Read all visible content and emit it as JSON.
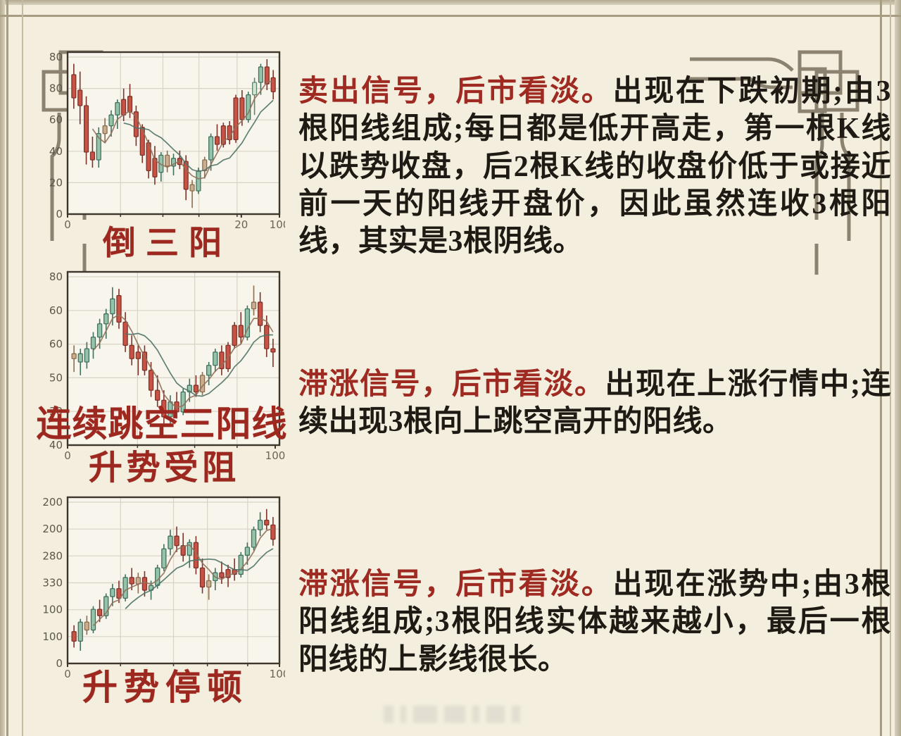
{
  "page": {
    "background": "#f3eedd",
    "frame_color": "#a59c81",
    "ornament_color": "#8b8270",
    "heading_red": "#9e2a22",
    "body_black": "#201a14"
  },
  "captions": {
    "chart1": "倒三阳",
    "chart2_main": "连续跳空三阳线",
    "chart2_sub": "升势受阻",
    "chart3": "升势停顿"
  },
  "texts": [
    {
      "lead": "卖出信号，后市看淡。",
      "body": "出现在下跌初期;由3根阳线组成;每日都是低开高走，第一根K线 以跌势收盘，后2根K线的收盘价低于或接近前一天的阳线开盘价，因此虽然连收3根阳线，其实是3根阴线。"
    },
    {
      "lead": "滞涨信号，后市看淡。",
      "body": "出现在上涨行情中;连续出现3根向上跳空高开的阳线。"
    },
    {
      "lead": "滞涨信号，后市看淡。",
      "body": "出现在涨势中;由3根阳线组成;3根阳线实体越来越小，最后一根阳线的上影线很长。"
    }
  ],
  "candle_palette": {
    "r": [
      "#c85244",
      "#7e332a"
    ],
    "g": [
      "#94c3a9",
      "#42705e"
    ],
    "lg": [
      "#d3e4d1",
      "#5f8570"
    ],
    "t": [
      "#c8ae8f",
      "#8a6e4f"
    ]
  },
  "ma_colors": [
    "#91705a",
    "#4f7367"
  ],
  "chart_data": [
    {
      "type": "candlestick",
      "title": "倒三阳",
      "ylim": [
        0,
        100
      ],
      "grid": true,
      "y_ticks": [
        "80",
        "80",
        "60",
        "40",
        "20",
        "0"
      ],
      "x_ticks": [
        {
          "label": "0",
          "pos": 0
        },
        {
          "label": "20",
          "pos": 0.82
        },
        {
          "label": "100",
          "pos": 1
        }
      ],
      "v_grid": [
        0.25,
        0.45,
        0.62,
        0.8
      ],
      "ma_windows": [
        4,
        9
      ],
      "candles": [
        [
          90,
          97,
          68,
          75,
          "r"
        ],
        [
          80,
          92,
          58,
          70,
          "r"
        ],
        [
          70,
          76,
          32,
          40,
          "r"
        ],
        [
          40,
          50,
          30,
          35,
          "r"
        ],
        [
          35,
          56,
          30,
          52,
          "g"
        ],
        [
          52,
          62,
          46,
          57,
          "t"
        ],
        [
          57,
          67,
          50,
          64,
          "g"
        ],
        [
          64,
          74,
          55,
          72,
          "g"
        ],
        [
          74,
          81,
          60,
          64,
          "r"
        ],
        [
          76,
          84,
          62,
          66,
          "r"
        ],
        [
          66,
          70,
          44,
          50,
          "r"
        ],
        [
          56,
          58,
          33,
          38,
          "r"
        ],
        [
          46,
          48,
          23,
          28,
          "r"
        ],
        [
          36,
          44,
          19,
          24,
          "r"
        ],
        [
          27,
          40,
          21,
          38,
          "g"
        ],
        [
          38,
          41,
          27,
          31,
          "t"
        ],
        [
          31,
          39,
          25,
          36,
          "g"
        ],
        [
          36,
          41,
          29,
          32,
          "r"
        ],
        [
          34,
          38,
          9,
          16,
          "r"
        ],
        [
          19,
          22,
          4,
          15,
          "t"
        ],
        [
          15,
          30,
          13,
          28,
          "g"
        ],
        [
          28,
          37,
          23,
          35,
          "t"
        ],
        [
          35,
          52,
          28,
          50,
          "g"
        ],
        [
          50,
          58,
          41,
          45,
          "r"
        ],
        [
          45,
          59,
          43,
          57,
          "r"
        ],
        [
          57,
          60,
          45,
          48,
          "r"
        ],
        [
          48,
          77,
          46,
          75,
          "r"
        ],
        [
          75,
          80,
          57,
          61,
          "r"
        ],
        [
          61,
          79,
          59,
          77,
          "g"
        ],
        [
          77,
          88,
          64,
          85,
          "lg"
        ],
        [
          85,
          97,
          77,
          95,
          "g"
        ],
        [
          95,
          100,
          80,
          84,
          "r"
        ],
        [
          88,
          93,
          74,
          79,
          "r"
        ]
      ]
    },
    {
      "type": "candlestick",
      "title": "连续跳空三阳线 / 升势受阻",
      "ylim": [
        0,
        100
      ],
      "grid": true,
      "y_ticks": [
        "80",
        "60",
        "60",
        "50",
        "30",
        "40"
      ],
      "x_ticks": [
        {
          "label": "0",
          "pos": 0
        },
        {
          "label": "100",
          "pos": 0.98
        }
      ],
      "v_grid": [
        0.33,
        0.6,
        0.8
      ],
      "ma_windows": [
        4,
        9
      ],
      "candles": [
        [
          52,
          60,
          44,
          55,
          "t"
        ],
        [
          55,
          58,
          42,
          50,
          "g"
        ],
        [
          50,
          62,
          46,
          58,
          "g"
        ],
        [
          58,
          68,
          52,
          65,
          "g"
        ],
        [
          65,
          76,
          58,
          73,
          "g"
        ],
        [
          73,
          82,
          64,
          79,
          "g"
        ],
        [
          79,
          95,
          72,
          88,
          "g"
        ],
        [
          90,
          94,
          70,
          74,
          "r"
        ],
        [
          74,
          80,
          56,
          60,
          "r"
        ],
        [
          60,
          66,
          48,
          52,
          "r"
        ],
        [
          52,
          60,
          42,
          56,
          "r"
        ],
        [
          56,
          60,
          42,
          45,
          "r"
        ],
        [
          45,
          50,
          29,
          33,
          "r"
        ],
        [
          33,
          42,
          23,
          27,
          "r"
        ],
        [
          27,
          33,
          13,
          17,
          "r"
        ],
        [
          17,
          30,
          12,
          26,
          "g"
        ],
        [
          26,
          32,
          16,
          20,
          "r"
        ],
        [
          20,
          34,
          18,
          32,
          "g"
        ],
        [
          32,
          40,
          26,
          36,
          "g"
        ],
        [
          36,
          42,
          29,
          32,
          "r"
        ],
        [
          32,
          44,
          30,
          42,
          "t"
        ],
        [
          42,
          50,
          36,
          48,
          "g"
        ],
        [
          48,
          58,
          44,
          56,
          "g"
        ],
        [
          56,
          60,
          42,
          46,
          "r"
        ],
        [
          46,
          62,
          44,
          60,
          "r"
        ],
        [
          60,
          74,
          58,
          72,
          "r"
        ],
        [
          72,
          80,
          61,
          65,
          "r"
        ],
        [
          65,
          84,
          63,
          82,
          "g"
        ],
        [
          82,
          96,
          78,
          86,
          "t"
        ],
        [
          86,
          92,
          68,
          72,
          "r"
        ],
        [
          72,
          78,
          53,
          58,
          "r"
        ],
        [
          58,
          64,
          47,
          56,
          "r"
        ]
      ]
    },
    {
      "type": "candlestick",
      "title": "升势停顿",
      "ylim": [
        0,
        100
      ],
      "grid": true,
      "y_ticks": [
        "200",
        "200",
        "280",
        "330",
        "100",
        "100",
        "0"
      ],
      "x_ticks": [
        {
          "label": "0",
          "pos": 0
        },
        {
          "label": "100",
          "pos": 1
        }
      ],
      "v_grid": [
        0.25,
        0.5,
        0.66,
        0.85
      ],
      "ma_windows": [
        4,
        9
      ],
      "candles": [
        [
          20,
          24,
          10,
          14,
          "r"
        ],
        [
          14,
          28,
          8,
          26,
          "g"
        ],
        [
          26,
          30,
          18,
          21,
          "t"
        ],
        [
          21,
          36,
          19,
          34,
          "g"
        ],
        [
          34,
          40,
          26,
          30,
          "r"
        ],
        [
          30,
          44,
          28,
          42,
          "g"
        ],
        [
          42,
          50,
          36,
          47,
          "g"
        ],
        [
          47,
          52,
          38,
          41,
          "r"
        ],
        [
          41,
          56,
          39,
          54,
          "g"
        ],
        [
          54,
          60,
          46,
          50,
          "r"
        ],
        [
          50,
          57,
          44,
          54,
          "t"
        ],
        [
          54,
          58,
          42,
          46,
          "r"
        ],
        [
          46,
          52,
          40,
          49,
          "g"
        ],
        [
          49,
          62,
          47,
          60,
          "g"
        ],
        [
          60,
          75,
          58,
          72,
          "g"
        ],
        [
          72,
          84,
          68,
          80,
          "g"
        ],
        [
          80,
          86,
          70,
          74,
          "r"
        ],
        [
          74,
          82,
          64,
          68,
          "r"
        ],
        [
          68,
          78,
          60,
          76,
          "g"
        ],
        [
          76,
          80,
          56,
          60,
          "r"
        ],
        [
          60,
          66,
          44,
          48,
          "r"
        ],
        [
          48,
          56,
          40,
          52,
          "t"
        ],
        [
          52,
          60,
          46,
          57,
          "g"
        ],
        [
          57,
          64,
          50,
          54,
          "r"
        ],
        [
          54,
          62,
          48,
          59,
          "r"
        ],
        [
          59,
          66,
          52,
          56,
          "r"
        ],
        [
          56,
          70,
          54,
          68,
          "g"
        ],
        [
          68,
          76,
          62,
          73,
          "g"
        ],
        [
          73,
          86,
          71,
          84,
          "g"
        ],
        [
          84,
          95,
          80,
          90,
          "g"
        ],
        [
          90,
          97,
          84,
          87,
          "r"
        ],
        [
          87,
          92,
          74,
          78,
          "r"
        ]
      ]
    }
  ]
}
